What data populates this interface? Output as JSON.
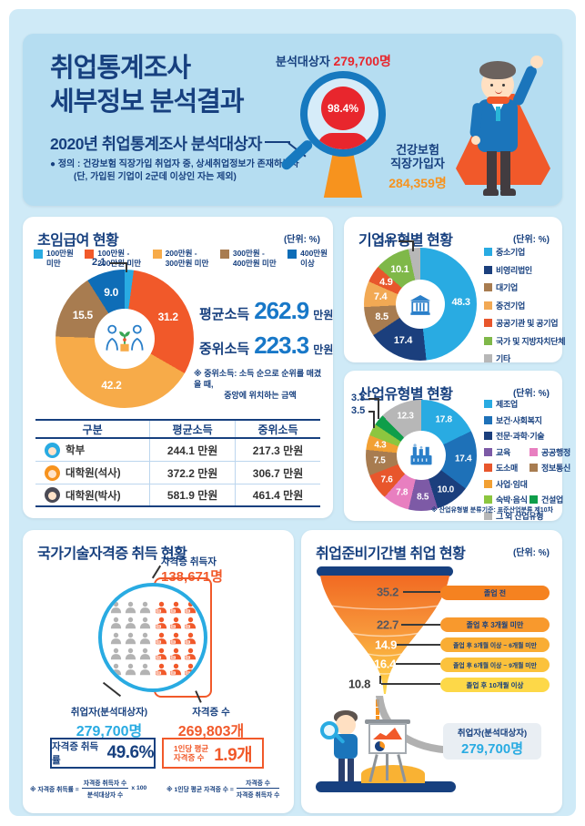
{
  "header": {
    "title_line1": "취업통계조사",
    "title_line2": "세부정보 분석결과",
    "subtitle": "2020년 취업통계조사 분석대상자",
    "definition_line1": "● 정의 : 건강보험 직장가입 취업자 중, 상세취업정보가 존재하는자",
    "definition_line2": "(단, 가입된 기업이 2군데 이상인 자는 제외)",
    "analysis_target_label": "분석대상자",
    "analysis_target_value": "279,700명",
    "match_rate": "98.4%",
    "insured_label_line1": "건강보험",
    "insured_label_line2": "직장가입자",
    "insured_value": "284,359명"
  },
  "salary_card": {
    "title": "초임급여 현황",
    "unit": "(단위: %)",
    "avg_label": "평균소득",
    "avg_value": "262.9",
    "avg_unit": "만원",
    "med_label": "중위소득",
    "med_value": "223.3",
    "med_unit": "만원",
    "note_line1": "※ 중위소득: 소득 순으로 순위를 매겼을 때,",
    "note_line2": "중앙에 위치하는 금액",
    "table": {
      "headers": [
        "구분",
        "평균소득",
        "중위소득"
      ],
      "rows": [
        {
          "label": "학부",
          "avg": "244.1 만원",
          "med": "217.3 만원",
          "icon_color": "#29abe2"
        },
        {
          "label": "대학원(석사)",
          "avg": "372.2 만원",
          "med": "306.7 만원",
          "icon_color": "#f7931e"
        },
        {
          "label": "대학원(박사)",
          "avg": "581.9 만원",
          "med": "461.4 만원",
          "icon_color": "#4a4a55"
        }
      ]
    }
  },
  "company_card": {
    "title": "기업유형별 현황",
    "unit": "(단위: %)"
  },
  "industry_card": {
    "title": "산업유형별 현황",
    "unit": "(단위: %)",
    "footnote": "※ 산업유형별 분류기준: 표준산업분류 제10차"
  },
  "cert_card": {
    "title": "국가기술자격증 취득 현황",
    "holder_label": "자격증 취득자",
    "holder_value": "138,671명",
    "employed_label": "취업자(분석대상자)",
    "employed_value": "279,700명",
    "count_label": "자격증 수",
    "count_value": "269,803개",
    "rate_label": "자격증 취득률",
    "rate_value": "49.6%",
    "per_label_line1": "1인당 평균",
    "per_label_line2": "자격증 수",
    "per_value": "1.9개",
    "formula1_label": "※ 자격증 취득률 =",
    "formula1_num": "자격증 취득자 수",
    "formula1_den": "분석대상자 수",
    "formula1_suffix": "x 100",
    "formula2_label": "※ 1인당 평균 자격증 수 =",
    "formula2_num": "자격증 수",
    "formula2_den": "자격증 취득자 수"
  },
  "funnel_card": {
    "title": "취업준비기간별 취업 현황",
    "unit": "(단위: %)",
    "callout_label": "취업자(분석대상자)",
    "callout_value": "279,700명"
  },
  "chart_data": [
    {
      "id": "starting-salary",
      "type": "donut",
      "title": "초임급여 현황",
      "unit": "%",
      "labels": [
        "100만원 미만",
        "100만원 - 200만원 미만",
        "200만원 - 300만원 미만",
        "300만원 - 400만원 미만",
        "400만원 이상"
      ],
      "legend_lines": [
        [
          "100만원",
          "미만"
        ],
        [
          "100만원 -",
          "200만원 미만"
        ],
        [
          "200만원 -",
          "300만원 미만"
        ],
        [
          "300만원 -",
          "400만원 미만"
        ],
        [
          "400만원",
          "이상"
        ]
      ],
      "values": [
        2.1,
        31.2,
        42.2,
        15.5,
        9.0
      ],
      "display": [
        "2.1",
        "31.2",
        "42.2",
        "15.5",
        "9.0"
      ],
      "colors": [
        "#29abe2",
        "#f1592a",
        "#f7ab49",
        "#a87c50",
        "#0e6db7"
      ],
      "outside": [
        0
      ]
    },
    {
      "id": "company-type",
      "type": "donut",
      "title": "기업유형별 현황",
      "unit": "%",
      "labels": [
        "중소기업",
        "비영리법인",
        "대기업",
        "중견기업",
        "공공기관 및 공기업",
        "국가 및 지방자치단체",
        "기타"
      ],
      "values": [
        48.3,
        17.4,
        8.5,
        7.4,
        4.9,
        10.1,
        3.4
      ],
      "display": [
        "48.3",
        "17.4",
        "8.5",
        "7.4",
        "4.9",
        "10.1",
        "3.4"
      ],
      "colors": [
        "#29abe2",
        "#1b3f7d",
        "#a87c50",
        "#f2a954",
        "#e8562c",
        "#7fb849",
        "#b7b7b7"
      ],
      "outside": [
        6
      ]
    },
    {
      "id": "industry-type",
      "type": "donut",
      "title": "산업유형별 현황",
      "unit": "%",
      "labels": [
        "제조업",
        "보건·사회복지",
        "전문·과학·기술",
        "교육",
        "공공행정",
        "도소매",
        "정보통신",
        "사업·임대",
        "숙박·음식",
        "건설업",
        "그 외 산업유형"
      ],
      "values": [
        17.8,
        17.4,
        10.0,
        8.5,
        7.8,
        7.6,
        7.5,
        4.3,
        3.5,
        3.3,
        12.3
      ],
      "display": [
        "17.8",
        "17.4",
        "10.0",
        "8.5",
        "7.8",
        "7.6",
        "7.5",
        "4.3",
        "3.5",
        "3.3",
        "12.3"
      ],
      "colors": [
        "#29abe2",
        "#1e71b8",
        "#1b3f7d",
        "#7d5aa6",
        "#e87fc0",
        "#e8562c",
        "#a87c50",
        "#f2a033",
        "#8cc63f",
        "#0f9e4a",
        "#b7b7b7"
      ],
      "outside": [
        8,
        9
      ]
    },
    {
      "id": "employment-by-prep-period",
      "type": "funnel",
      "title": "취업준비기간별 취업 현황",
      "unit": "%",
      "categories": [
        "졸업 전",
        "졸업 후 3개월 미만",
        "졸업 후 3개월 이상 ~ 6개월 미만",
        "졸업 후 6개월 이상 ~ 9개월 미만",
        "졸업 후 10개월 이상"
      ],
      "values": [
        35.2,
        22.7,
        14.9,
        16.4,
        10.8
      ],
      "display": [
        "35.2",
        "22.7",
        "14.9",
        "16.4",
        "10.8"
      ]
    }
  ]
}
